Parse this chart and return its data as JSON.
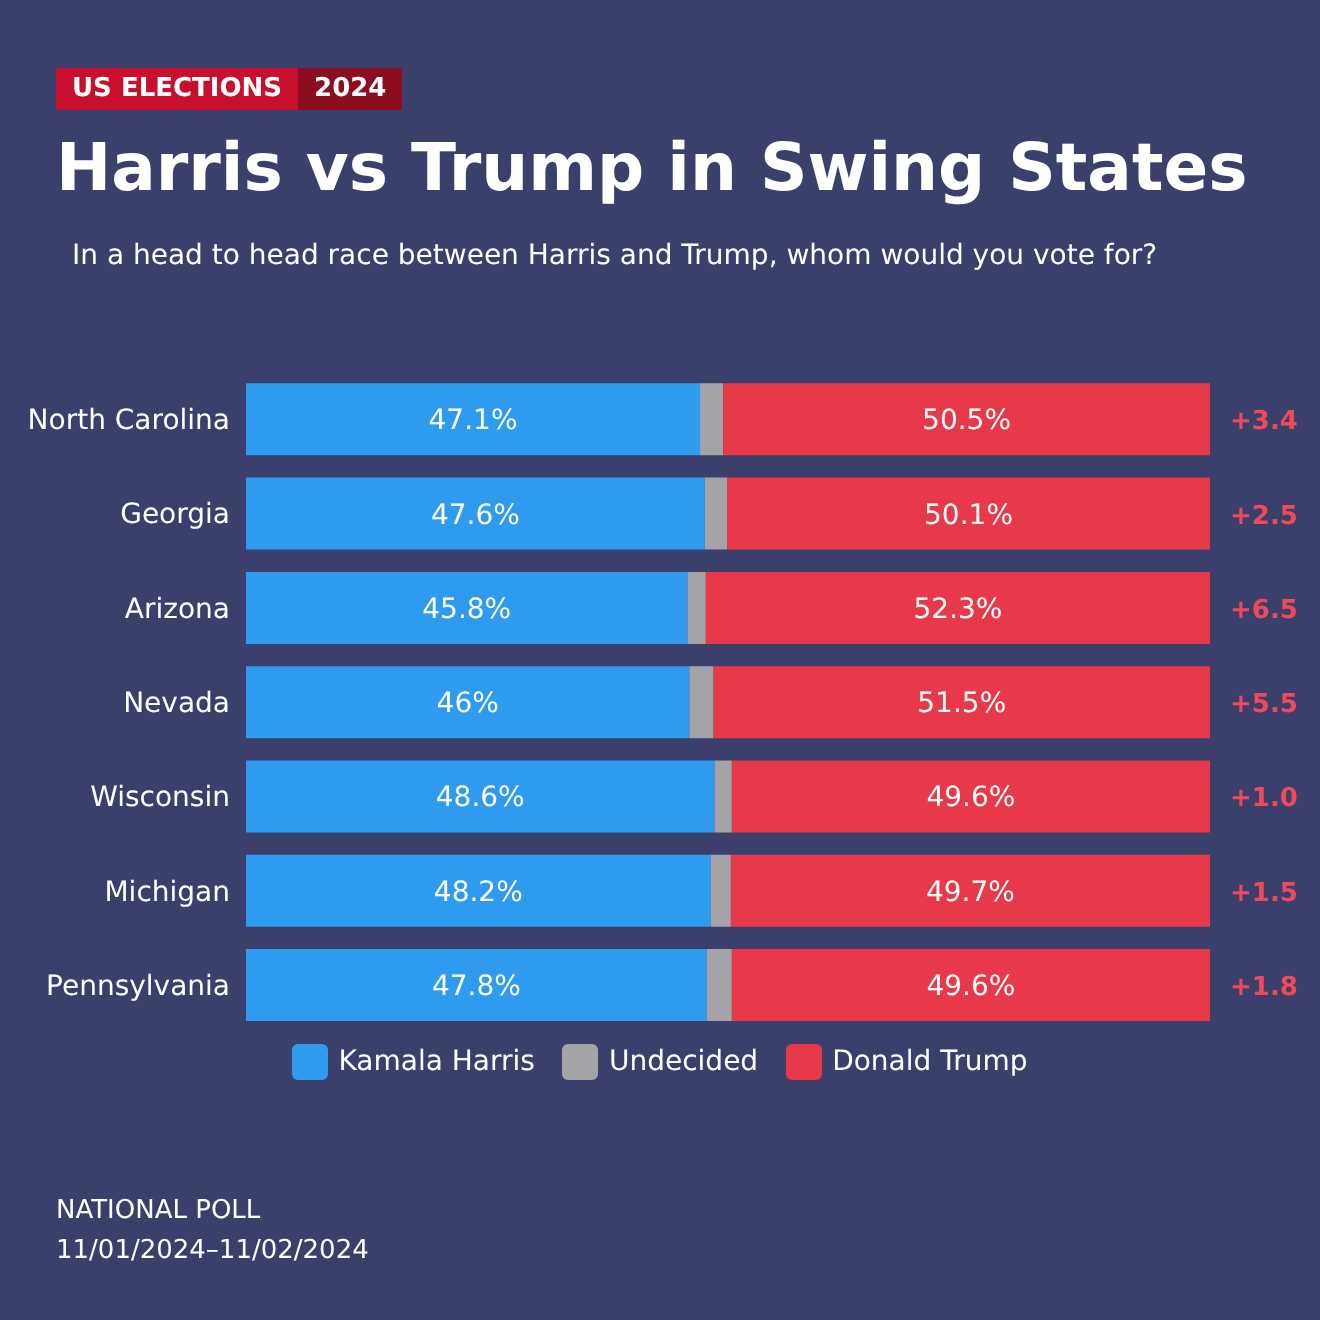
{
  "chart_data": {
    "type": "bar",
    "orientation": "horizontal",
    "stacked": true,
    "title": "Harris vs Trump in Swing States",
    "subtitle": "In a head to head race between Harris and Trump, whom would you vote for?",
    "categories": [
      "North Carolina",
      "Georgia",
      "Arizona",
      "Nevada",
      "Wisconsin",
      "Michigan",
      "Pennsylvania"
    ],
    "series": [
      {
        "name": "Kamala Harris",
        "color": "#2e9bef",
        "values": [
          47.1,
          47.6,
          45.8,
          46,
          48.6,
          48.2,
          47.8
        ],
        "value_labels": [
          "47.1%",
          "47.6%",
          "45.8%",
          "46%",
          "48.6%",
          "48.2%",
          "47.8%"
        ]
      },
      {
        "name": "Undecided",
        "color": "#a3a3a8",
        "values": [
          2.4,
          2.3,
          1.9,
          2.5,
          1.8,
          2.1,
          2.6
        ]
      },
      {
        "name": "Donald Trump",
        "color": "#e8394a",
        "values": [
          50.5,
          50.1,
          52.3,
          51.5,
          49.6,
          49.7,
          49.6
        ],
        "value_labels": [
          "50.5%",
          "50.1%",
          "52.3%",
          "51.5%",
          "49.6%",
          "49.7%",
          "49.6%"
        ]
      }
    ],
    "xlim": [
      0,
      100
    ],
    "tick_labels": "y",
    "legend": "bottom",
    "annotations": [
      "US ELECTIONS",
      "2024",
      "+3.4",
      "+2.5",
      "+6.5",
      "+5.5",
      "+1.0",
      "+1.5",
      "+1.8",
      "NATIONAL POLL",
      "11/01/2024–11/02/2024"
    ]
  }
}
